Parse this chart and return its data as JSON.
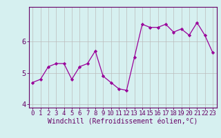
{
  "x": [
    0,
    1,
    2,
    3,
    4,
    5,
    6,
    7,
    8,
    9,
    10,
    11,
    12,
    13,
    14,
    15,
    16,
    17,
    18,
    19,
    20,
    21,
    22,
    23
  ],
  "y": [
    4.7,
    4.8,
    5.2,
    5.3,
    5.3,
    4.8,
    5.2,
    5.3,
    5.7,
    4.9,
    4.7,
    4.5,
    4.45,
    5.5,
    6.55,
    6.45,
    6.45,
    6.55,
    6.3,
    6.4,
    6.2,
    6.6,
    6.2,
    5.65
  ],
  "line_color": "#990099",
  "marker_color": "#990099",
  "bg_color": "#d6f0f0",
  "grid_color": "#bbbbbb",
  "axis_color": "#660066",
  "xlabel": "Windchill (Refroidissement éolien,°C)",
  "xlim": [
    -0.5,
    23.5
  ],
  "ylim": [
    3.9,
    7.1
  ],
  "yticks": [
    4,
    5,
    6
  ],
  "xticks": [
    0,
    1,
    2,
    3,
    4,
    5,
    6,
    7,
    8,
    9,
    10,
    11,
    12,
    13,
    14,
    15,
    16,
    17,
    18,
    19,
    20,
    21,
    22,
    23
  ],
  "tick_font_size": 6.5,
  "label_font_size": 7.0
}
